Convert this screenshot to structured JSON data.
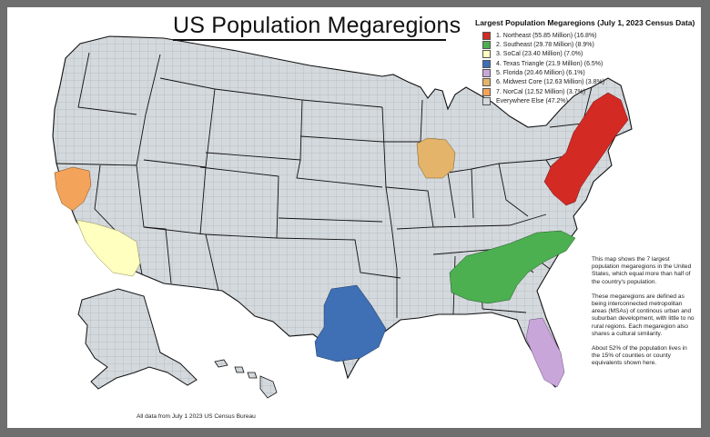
{
  "title": "US Population Megaregions",
  "legend": {
    "title": "Largest Population Megaregions (July 1, 2023 Census Data)",
    "items": [
      {
        "label": "1. Northeast (55.85 Million) (16.8%)",
        "color": "#d42a24"
      },
      {
        "label": "2. Southeast (29.78 Million) (8.9%)",
        "color": "#4caf50"
      },
      {
        "label": "3. SoCal (23.40 Million) (7.0%)",
        "color": "#ffffc0"
      },
      {
        "label": "4. Texas Triangle (21.9 Million) (6.5%)",
        "color": "#3f6fb5"
      },
      {
        "label": "5. Florida (20.46 Million) (6.1%)",
        "color": "#c9a6d9"
      },
      {
        "label": "6. Midwest Core (12.63 Million) (3.8%)",
        "color": "#e4b46a"
      },
      {
        "label": "7. NorCal (12.52 Million) (3.7%)",
        "color": "#f4a35a"
      },
      {
        "label": "Everywhere Else (47.2%)",
        "color": "#d4d9dd"
      }
    ]
  },
  "notes": [
    "This map shows the 7 largest population megaregions in the United States, which equal more than half of the country's population.",
    "These megaregions are defined as being interconnected metropolitan areas (MSAs) of continous urban and suburban development, with little to no rural regions. Each megaregion also shares a cultural similarity.",
    "About 52% of the population lives in the 15% of counties or county equivalents shown here."
  ],
  "source": "All data from July 1 2023 US Census Bureau"
}
